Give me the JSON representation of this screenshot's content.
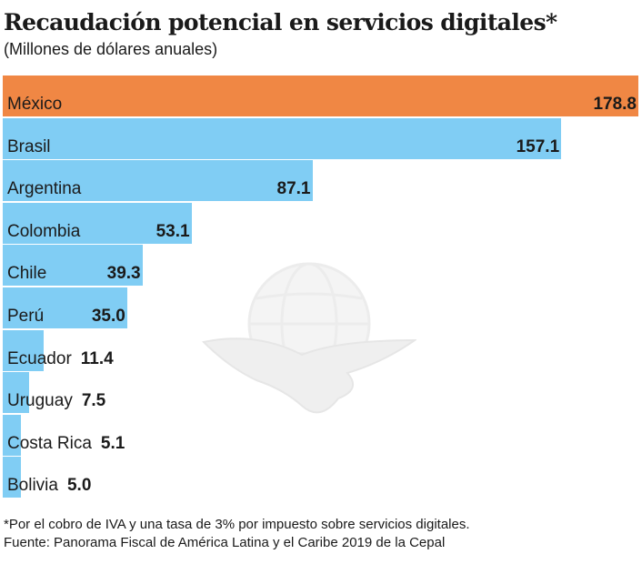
{
  "chart_data": {
    "type": "bar",
    "orientation": "horizontal",
    "title": "Recaudación potencial en servicios digitales*",
    "subtitle": "(Millones de dólares anuales)",
    "xlabel": "",
    "ylabel": "",
    "xlim": [
      0,
      178.8
    ],
    "grid": false,
    "legend": "none",
    "categories": [
      "México",
      "Brasil",
      "Argentina",
      "Colombia",
      "Chile",
      "Perú",
      "Ecuador",
      "Uruguay",
      "Costa Rica",
      "Bolivia"
    ],
    "values": [
      178.8,
      157.1,
      87.1,
      53.1,
      39.3,
      35.0,
      11.4,
      7.5,
      5.1,
      5.0
    ],
    "value_labels": [
      "178.8",
      "157.1",
      "87.1",
      "53.1",
      "39.3",
      "35.0",
      "11.4",
      "7.5",
      "5.1",
      "5.0"
    ],
    "highlight_category": "México",
    "colors": {
      "highlight": "#f08744",
      "default": "#80cdf4"
    }
  },
  "footnote": "*Por el cobro de IVA y una tasa de 3% por impuesto sobre servicios digitales.",
  "source": "Fuente: Panorama Fiscal de América Latina y el Caribe 2019 de la Cepal",
  "watermark": "eagle-globe-logo"
}
